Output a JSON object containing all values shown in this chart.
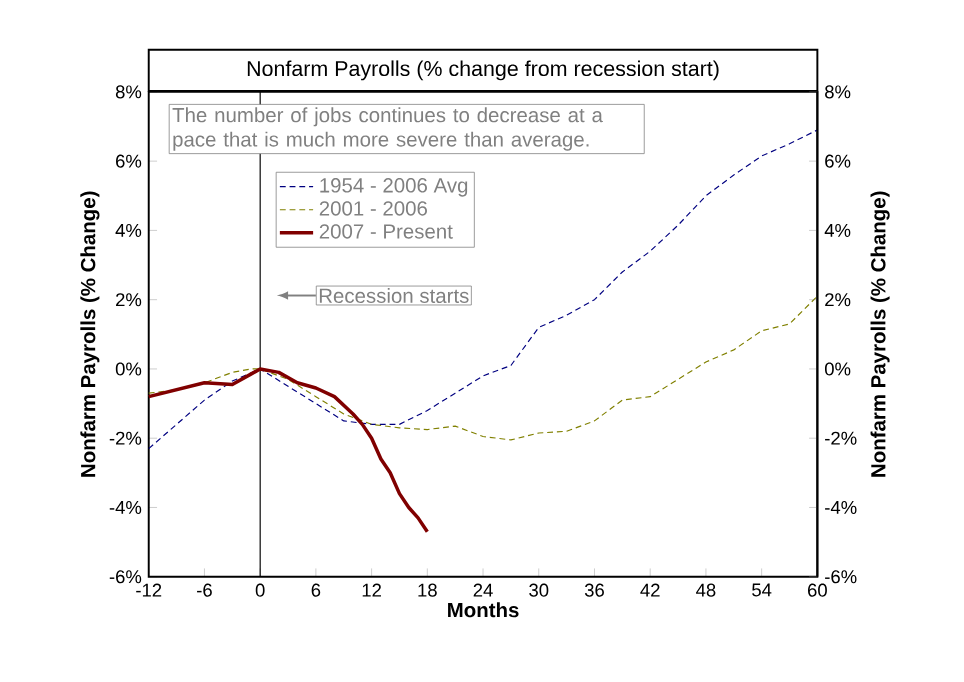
{
  "chart_data": {
    "type": "line",
    "title": "Nonfarm Payrolls (% change from recession start)",
    "xlabel": "Months",
    "ylabel": "Nonfarm Payrolls (% Change)",
    "y2label": "Nonfarm Payrolls (% Change)",
    "annotations": [
      "The number of jobs continues to decrease at a pace that is much more severe than average."
    ],
    "xlim": [
      -12,
      60
    ],
    "xticks": [
      -12,
      -6,
      0,
      6,
      12,
      18,
      24,
      30,
      36,
      42,
      48,
      54,
      60
    ],
    "ylim": [
      -6,
      8
    ],
    "yticks": [
      {
        "value": -6,
        "label": "-6%"
      },
      {
        "value": -4,
        "label": "-4%"
      },
      {
        "value": -2,
        "label": "-2%"
      },
      {
        "value": 0,
        "label": "0%"
      },
      {
        "value": 2,
        "label": "2%"
      },
      {
        "value": 4,
        "label": "4%"
      },
      {
        "value": 6,
        "label": "6%"
      },
      {
        "value": 8,
        "label": "8%"
      }
    ],
    "y2lim": [
      -6,
      8
    ],
    "y2ticks": [
      {
        "value": -6,
        "label": "-6%"
      },
      {
        "value": -4,
        "label": "-4%"
      },
      {
        "value": -2,
        "label": "-2%"
      },
      {
        "value": 0,
        "label": "0%"
      },
      {
        "value": 2,
        "label": "2%"
      },
      {
        "value": 4,
        "label": "4%"
      },
      {
        "value": 6,
        "label": "6%"
      },
      {
        "value": 8,
        "label": "8%"
      }
    ],
    "legend": "top left",
    "grid": false,
    "ref_lines": [
      {
        "axis": "x",
        "value": 0,
        "label": "Recession starts",
        "color": "#000000"
      }
    ],
    "series": [
      {
        "name": "1954 - 2006 Avg",
        "color": "#000080",
        "line_style": "dashed",
        "x": [
          -12,
          -9,
          -6,
          -3,
          0,
          3,
          6,
          9,
          12,
          15,
          18,
          21,
          24,
          27,
          30,
          33,
          36,
          39,
          42,
          45,
          48,
          51,
          54,
          57,
          60
        ],
        "values": [
          -2.3,
          -1.6,
          -0.9,
          -0.35,
          0,
          -0.5,
          -1.0,
          -1.5,
          -1.6,
          -1.6,
          -1.2,
          -0.7,
          -0.2,
          0.1,
          1.2,
          1.55,
          2.0,
          2.8,
          3.4,
          4.15,
          5.0,
          5.6,
          6.15,
          6.5,
          6.9
        ]
      },
      {
        "name": "2001 - 2006",
        "color": "#808000",
        "line_style": "dashed",
        "x": [
          -12,
          -9,
          -6,
          -3,
          -1,
          0,
          3,
          6,
          9,
          12,
          15,
          18,
          21,
          24,
          27,
          30,
          33,
          36,
          39,
          42,
          45,
          48,
          51,
          54,
          57,
          60
        ],
        "values": [
          -0.7,
          -0.6,
          -0.4,
          -0.1,
          0,
          0,
          -0.3,
          -0.8,
          -1.3,
          -1.6,
          -1.7,
          -1.75,
          -1.65,
          -1.95,
          -2.05,
          -1.85,
          -1.8,
          -1.5,
          -0.9,
          -0.8,
          -0.3,
          0.2,
          0.55,
          1.1,
          1.3,
          2.1
        ]
      },
      {
        "name": "2007 - Present",
        "color": "#800000",
        "line_style": "solid",
        "x": [
          -12,
          -9,
          -6,
          -3,
          -1,
          0,
          2,
          4,
          6,
          8,
          10,
          11,
          12,
          13,
          14,
          15,
          16,
          17,
          18
        ],
        "values": [
          -0.8,
          -0.6,
          -0.4,
          -0.45,
          -0.15,
          0,
          -0.1,
          -0.4,
          -0.55,
          -0.8,
          -1.3,
          -1.6,
          -2.0,
          -2.6,
          -3.0,
          -3.6,
          -4.0,
          -4.3,
          -4.7
        ]
      }
    ]
  }
}
